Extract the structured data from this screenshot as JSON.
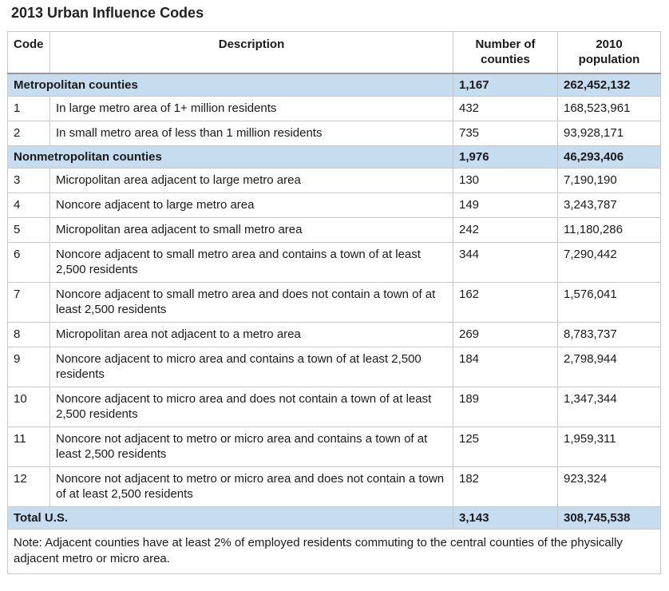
{
  "title": "2013 Urban Influence Codes",
  "headers": {
    "code": "Code",
    "description": "Description",
    "counties": "Number of counties",
    "population": "2010 population"
  },
  "groups": [
    {
      "label": "Metropolitan counties",
      "counties": "1,167",
      "population": "262,452,132",
      "rows": [
        {
          "code": "1",
          "description": "In large metro area of 1+ million residents",
          "counties": "432",
          "population": "168,523,961"
        },
        {
          "code": "2",
          "description": "In small metro area of less than 1 million residents",
          "counties": "735",
          "population": "93,928,171"
        }
      ]
    },
    {
      "label": "Nonmetropolitan counties",
      "counties": "1,976",
      "population": "46,293,406",
      "rows": [
        {
          "code": "3",
          "description": "Micropolitan area adjacent to large metro area",
          "counties": "130",
          "population": "7,190,190"
        },
        {
          "code": "4",
          "description": "Noncore adjacent to large metro area",
          "counties": "149",
          "population": "3,243,787"
        },
        {
          "code": "5",
          "description": "Micropolitan area adjacent to small metro area",
          "counties": "242",
          "population": "11,180,286"
        },
        {
          "code": "6",
          "description": "Noncore adjacent to small metro area and contains a town of at least 2,500 residents",
          "counties": "344",
          "population": "7,290,442"
        },
        {
          "code": "7",
          "description": "Noncore adjacent to small metro area and does not contain a town of at least 2,500 residents",
          "counties": "162",
          "population": "1,576,041"
        },
        {
          "code": "8",
          "description": "Micropolitan area not adjacent to a metro area",
          "counties": "269",
          "population": "8,783,737"
        },
        {
          "code": "9",
          "description": "Noncore adjacent to micro area and contains a town of at least 2,500 residents",
          "counties": "184",
          "population": "2,798,944"
        },
        {
          "code": "10",
          "description": "Noncore adjacent to micro area and does not contain a town of at least 2,500 residents",
          "counties": "189",
          "population": "1,347,344"
        },
        {
          "code": "11",
          "description": "Noncore not adjacent to metro or micro area and contains a town of at least 2,500 residents",
          "counties": "125",
          "population": "1,959,311"
        },
        {
          "code": "12",
          "description": "Noncore not adjacent to metro or micro area and does not contain a town of at least 2,500 residents",
          "counties": "182",
          "population": "923,324"
        }
      ]
    }
  ],
  "total": {
    "label": "Total U.S.",
    "counties": "3,143",
    "population": "308,745,538"
  },
  "note": "Note: Adjacent counties have at least 2% of employed residents commuting to the central counties of the physically adjacent metro or micro area."
}
